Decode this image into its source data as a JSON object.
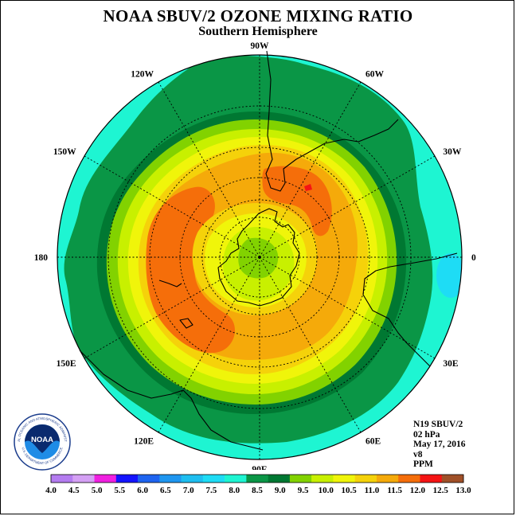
{
  "title": "NOAA SBUV/2 OZONE MIXING RATIO",
  "subtitle": "Southern Hemisphere",
  "longitude_labels": [
    {
      "text": "90W",
      "lon": -90
    },
    {
      "text": "60W",
      "lon": -60
    },
    {
      "text": "30W",
      "lon": -30
    },
    {
      "text": "0",
      "lon": 0
    },
    {
      "text": "30E",
      "lon": 30
    },
    {
      "text": "60E",
      "lon": 60
    },
    {
      "text": "90E",
      "lon": 90
    },
    {
      "text": "120E",
      "lon": 120
    },
    {
      "text": "150E",
      "lon": 150
    },
    {
      "text": "180",
      "lon": 180
    },
    {
      "text": "150W",
      "lon": -150
    },
    {
      "text": "120W",
      "lon": -120
    }
  ],
  "info": {
    "satellite": "N19 SBUV/2",
    "level": "02 hPa",
    "date": "May 17, 2016",
    "version": "v8",
    "units": "PPM"
  },
  "logo": {
    "text": "NOAA",
    "ring_text": "NATIONAL OCEANIC AND ATMOSPHERIC ADMINISTRATION",
    "ring_text_bottom": "U.S. DEPARTMENT OF COMMERCE"
  },
  "colorbar": {
    "ticks": [
      "4.0",
      "4.5",
      "5.0",
      "5.5",
      "6.0",
      "6.5",
      "7.0",
      "7.5",
      "8.0",
      "8.5",
      "9.0",
      "9.5",
      "10.0",
      "10.5",
      "11.0",
      "11.5",
      "12.0",
      "12.5",
      "13.0"
    ],
    "colors": [
      "#b47cf0",
      "#d4a0f4",
      "#f020e0",
      "#1414ff",
      "#1e64f0",
      "#1e96f0",
      "#1ebef0",
      "#1edcf5",
      "#1ef5d2",
      "#0a9646",
      "#007832",
      "#82d200",
      "#c8f000",
      "#f0f50a",
      "#f5d20a",
      "#f5aa0a",
      "#f56e0a",
      "#f51414",
      "#a05028"
    ]
  },
  "map_data": {
    "projection": "south-polar-stereographic",
    "level_colors": {
      "7.5": "#1edcf5",
      "8.0": "#1ef5d2",
      "8.5": "#0a9646",
      "9.0": "#007832",
      "9.5": "#82d200",
      "10.0": "#c8f000",
      "10.5": "#f0f50a",
      "11.0": "#f5d20a",
      "11.5": "#f5aa0a",
      "12.0": "#f56e0a",
      "12.5": "#f51414"
    }
  }
}
